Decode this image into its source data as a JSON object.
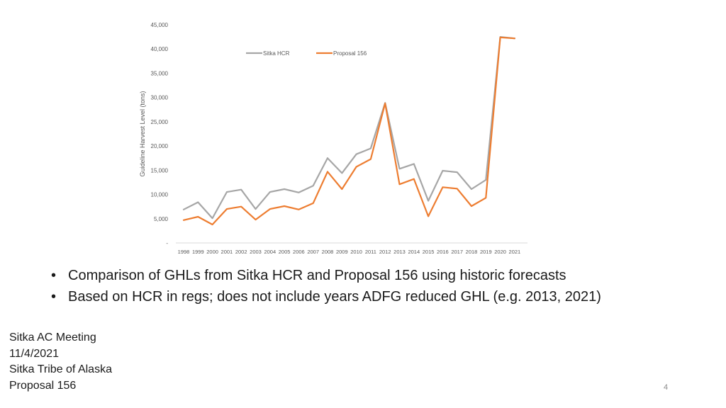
{
  "chart_data": {
    "type": "line",
    "title": "",
    "xlabel": "",
    "ylabel": "Guideline Harvest Level (tons)",
    "ylim": [
      0,
      45000
    ],
    "yticks": [
      0,
      5000,
      10000,
      15000,
      20000,
      25000,
      30000,
      35000,
      40000,
      45000
    ],
    "ytick_labels": [
      "-",
      "5,000",
      "10,000",
      "15,000",
      "20,000",
      "25,000",
      "30,000",
      "35,000",
      "40,000",
      "45,000"
    ],
    "legend_position": "top",
    "grid": false,
    "categories": [
      "1998",
      "1999",
      "2000",
      "2001",
      "2002",
      "2003",
      "2004",
      "2005",
      "2006",
      "2007",
      "2008",
      "2009",
      "2010",
      "2011",
      "2012",
      "2013",
      "2014",
      "2015",
      "2016",
      "2017",
      "2018",
      "2019",
      "2020",
      "2021"
    ],
    "series": [
      {
        "name": "Sitka HCR",
        "color": "#a6a6a6",
        "values": [
          6900,
          8400,
          5100,
          10500,
          11000,
          7000,
          10500,
          11100,
          10400,
          11800,
          17500,
          14400,
          18300,
          19500,
          28900,
          15300,
          16300,
          8700,
          14900,
          14600,
          11100,
          13000,
          42500,
          42200
        ]
      },
      {
        "name": "Proposal 156",
        "color": "#ed7d31",
        "values": [
          4700,
          5400,
          3800,
          7000,
          7500,
          4800,
          7000,
          7600,
          6900,
          8200,
          14700,
          11100,
          15700,
          17300,
          28800,
          12100,
          13200,
          5500,
          11500,
          11200,
          7600,
          9300,
          42400,
          42200
        ]
      }
    ]
  },
  "bullets": [
    "Comparison of GHLs from Sitka HCR and Proposal 156 using historic forecasts",
    "Based on HCR in regs; does not include years ADFG reduced GHL (e.g. 2013, 2021)"
  ],
  "footer": {
    "line1": "Sitka AC Meeting",
    "line2": "11/4/2021",
    "line3": "Sitka Tribe of Alaska",
    "line4": "Proposal 156"
  },
  "page_number": "4"
}
